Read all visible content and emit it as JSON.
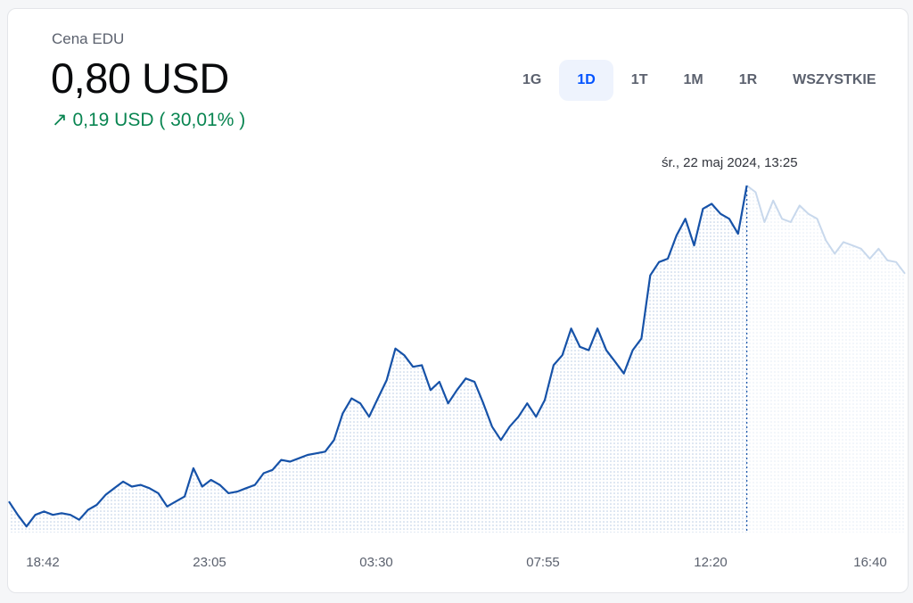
{
  "header": {
    "label": "Cena EDU",
    "price": "0,80 USD",
    "change_arrow": "↗",
    "change": "0,19 USD ( 30,01% )"
  },
  "tabs": [
    {
      "label": "1G",
      "active": false
    },
    {
      "label": "1D",
      "active": true
    },
    {
      "label": "1T",
      "active": false
    },
    {
      "label": "1M",
      "active": false
    },
    {
      "label": "1R",
      "active": false
    },
    {
      "label": "WSZYSTKIE",
      "active": false
    }
  ],
  "hover": {
    "time": "śr., 22 maj 2024, 13:25",
    "index": 84
  },
  "colors": {
    "line": "#1652a8",
    "faded": "#c8d8ec",
    "fill": "#b9cbe3",
    "positive": "#098551",
    "accent": "#0052ff"
  },
  "chart_data": {
    "type": "line",
    "title": "Cena EDU",
    "ylabel": "USD",
    "xlabel": "",
    "x_ticks": [
      "18:42",
      "23:05",
      "03:30",
      "07:55",
      "12:20",
      "16:40"
    ],
    "ylim": [
      0.5935,
      0.8
    ],
    "grid": false,
    "values": [
      0.61,
      0.602,
      0.595,
      0.602,
      0.604,
      0.602,
      0.603,
      0.602,
      0.599,
      0.605,
      0.608,
      0.614,
      0.618,
      0.622,
      0.619,
      0.62,
      0.618,
      0.615,
      0.607,
      0.61,
      0.613,
      0.63,
      0.619,
      0.623,
      0.62,
      0.615,
      0.616,
      0.618,
      0.62,
      0.627,
      0.629,
      0.635,
      0.634,
      0.636,
      0.638,
      0.639,
      0.64,
      0.647,
      0.663,
      0.672,
      0.669,
      0.661,
      0.672,
      0.683,
      0.702,
      0.698,
      0.691,
      0.692,
      0.677,
      0.682,
      0.669,
      0.677,
      0.684,
      0.682,
      0.669,
      0.655,
      0.647,
      0.655,
      0.661,
      0.669,
      0.661,
      0.671,
      0.692,
      0.698,
      0.714,
      0.703,
      0.701,
      0.714,
      0.701,
      0.694,
      0.687,
      0.701,
      0.708,
      0.746,
      0.754,
      0.756,
      0.77,
      0.78,
      0.764,
      0.786,
      0.789,
      0.783,
      0.78,
      0.771,
      0.8,
      0.796,
      0.778,
      0.791,
      0.78,
      0.778,
      0.788,
      0.783,
      0.78,
      0.767,
      0.759,
      0.766,
      0.764,
      0.762,
      0.756,
      0.762,
      0.755,
      0.754,
      0.747
    ]
  }
}
